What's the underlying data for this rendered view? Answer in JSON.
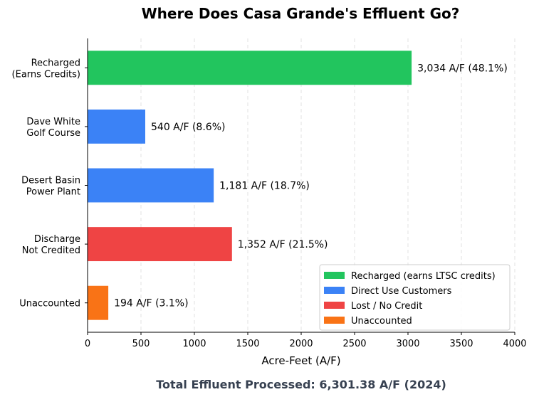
{
  "chart_data": {
    "type": "bar",
    "orientation": "horizontal",
    "title": "Where Does Casa Grande's Effluent Go?",
    "xlabel": "Acre-Feet (A/F)",
    "ylabel": "",
    "xlim": [
      0,
      4000
    ],
    "xticks": [
      0,
      500,
      1000,
      1500,
      2000,
      2500,
      3000,
      3500,
      4000
    ],
    "grid": "x-dashed",
    "categories": [
      [
        "Recharged",
        "(Earns Credits)"
      ],
      [
        "Dave White",
        "Golf Course"
      ],
      [
        "Desert Basin",
        "Power Plant"
      ],
      [
        "Discharge",
        "Not Credited"
      ],
      [
        "Unaccounted"
      ]
    ],
    "values": [
      3034,
      540,
      1181,
      1352,
      194
    ],
    "data_labels": [
      "3,034 A/F (48.1%)",
      "540 A/F (8.6%)",
      "1,181 A/F (18.7%)",
      "1,352 A/F (21.5%)",
      "194 A/F (3.1%)"
    ],
    "bar_colors": [
      "#22c55e",
      "#3b82f6",
      "#3b82f6",
      "#ef4444",
      "#f97316"
    ],
    "legend_position": "lower-right",
    "legend": [
      {
        "label": "Recharged (earns LTSC credits)",
        "color": "#22c55e"
      },
      {
        "label": "Direct Use Customers",
        "color": "#3b82f6"
      },
      {
        "label": "Lost / No Credit",
        "color": "#ef4444"
      },
      {
        "label": "Unaccounted",
        "color": "#f97316"
      }
    ],
    "footer": "Total Effluent Processed: 6,301.38 A/F (2024)"
  }
}
